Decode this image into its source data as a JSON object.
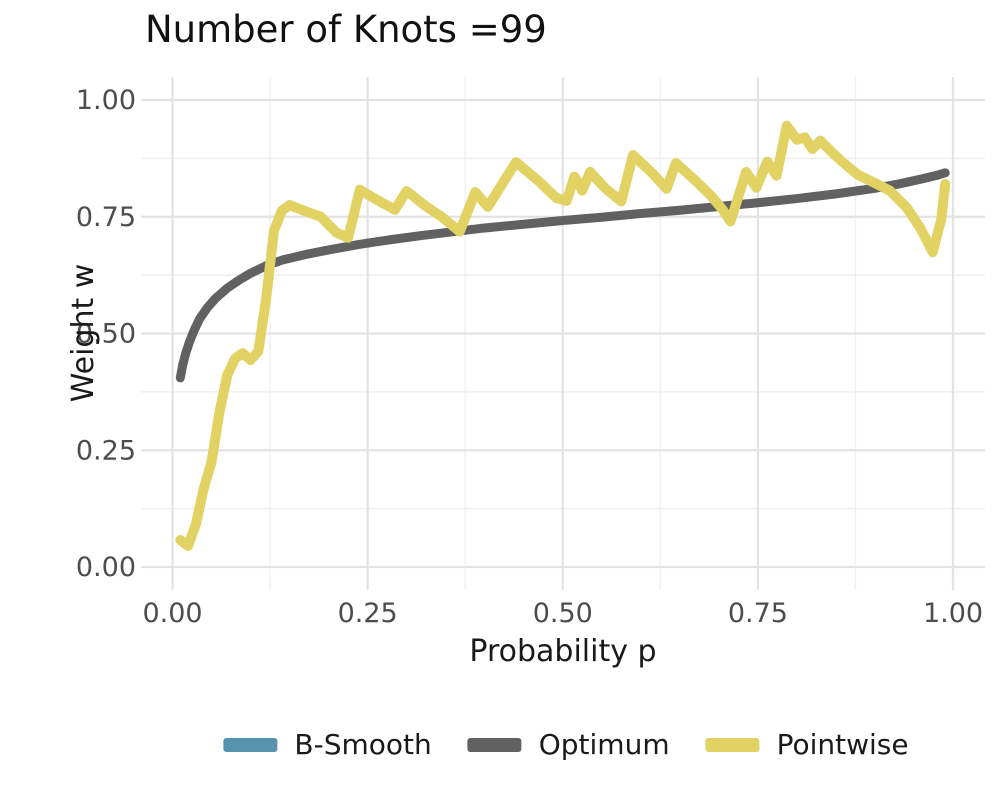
{
  "chart_data": {
    "type": "line",
    "title": "Number of Knots =99",
    "xlabel": "Probability p",
    "ylabel": "Weight w",
    "xlim": [
      0,
      1
    ],
    "ylim": [
      0,
      1
    ],
    "x_ticks": [
      0,
      0.25,
      0.5,
      0.75,
      1
    ],
    "x_tick_labels": [
      "0.00",
      "0.25",
      "0.50",
      "0.75",
      "1.00"
    ],
    "y_ticks": [
      0,
      0.25,
      0.5,
      0.75,
      1
    ],
    "y_tick_labels": [
      "0.00",
      "0.25",
      "0.50",
      "0.75",
      "1.00"
    ],
    "grid": {
      "major_color": "#e3e3e3",
      "minor_color": "#f0f0f0",
      "minor_step": 0.125
    },
    "legend_position": "bottom-center",
    "series": [
      {
        "name": "B-Smooth",
        "color": "#5793ad",
        "linewidth": 9,
        "visible_in_panel": false,
        "points": []
      },
      {
        "name": "Optimum",
        "color": "#616161",
        "linewidth": 9,
        "visible_in_panel": true,
        "points": [
          [
            0.01,
            0.405
          ],
          [
            0.013,
            0.432
          ],
          [
            0.017,
            0.458
          ],
          [
            0.022,
            0.483
          ],
          [
            0.028,
            0.508
          ],
          [
            0.035,
            0.532
          ],
          [
            0.045,
            0.556
          ],
          [
            0.055,
            0.575
          ],
          [
            0.07,
            0.597
          ],
          [
            0.085,
            0.614
          ],
          [
            0.1,
            0.629
          ],
          [
            0.12,
            0.645
          ],
          [
            0.14,
            0.657
          ],
          [
            0.17,
            0.669
          ],
          [
            0.2,
            0.679
          ],
          [
            0.24,
            0.691
          ],
          [
            0.28,
            0.701
          ],
          [
            0.32,
            0.71
          ],
          [
            0.36,
            0.718
          ],
          [
            0.4,
            0.726
          ],
          [
            0.45,
            0.734
          ],
          [
            0.5,
            0.742
          ],
          [
            0.55,
            0.749
          ],
          [
            0.6,
            0.757
          ],
          [
            0.65,
            0.764
          ],
          [
            0.7,
            0.772
          ],
          [
            0.75,
            0.78
          ],
          [
            0.8,
            0.789
          ],
          [
            0.85,
            0.799
          ],
          [
            0.9,
            0.811
          ],
          [
            0.93,
            0.82
          ],
          [
            0.96,
            0.831
          ],
          [
            0.98,
            0.839
          ],
          [
            0.99,
            0.844
          ]
        ]
      },
      {
        "name": "Pointwise",
        "color": "#e2d263",
        "linewidth": 10,
        "visible_in_panel": true,
        "points": [
          [
            0.01,
            0.058
          ],
          [
            0.02,
            0.045
          ],
          [
            0.03,
            0.092
          ],
          [
            0.04,
            0.168
          ],
          [
            0.05,
            0.225
          ],
          [
            0.06,
            0.33
          ],
          [
            0.07,
            0.41
          ],
          [
            0.08,
            0.446
          ],
          [
            0.09,
            0.458
          ],
          [
            0.1,
            0.443
          ],
          [
            0.11,
            0.462
          ],
          [
            0.12,
            0.575
          ],
          [
            0.13,
            0.72
          ],
          [
            0.14,
            0.763
          ],
          [
            0.15,
            0.775
          ],
          [
            0.17,
            0.762
          ],
          [
            0.19,
            0.75
          ],
          [
            0.21,
            0.716
          ],
          [
            0.225,
            0.705
          ],
          [
            0.24,
            0.808
          ],
          [
            0.26,
            0.788
          ],
          [
            0.285,
            0.765
          ],
          [
            0.3,
            0.805
          ],
          [
            0.325,
            0.772
          ],
          [
            0.345,
            0.75
          ],
          [
            0.368,
            0.718
          ],
          [
            0.388,
            0.803
          ],
          [
            0.404,
            0.771
          ],
          [
            0.44,
            0.867
          ],
          [
            0.47,
            0.825
          ],
          [
            0.492,
            0.79
          ],
          [
            0.505,
            0.784
          ],
          [
            0.515,
            0.836
          ],
          [
            0.525,
            0.806
          ],
          [
            0.535,
            0.846
          ],
          [
            0.555,
            0.81
          ],
          [
            0.575,
            0.783
          ],
          [
            0.59,
            0.882
          ],
          [
            0.615,
            0.843
          ],
          [
            0.633,
            0.81
          ],
          [
            0.645,
            0.865
          ],
          [
            0.667,
            0.832
          ],
          [
            0.69,
            0.795
          ],
          [
            0.705,
            0.765
          ],
          [
            0.715,
            0.74
          ],
          [
            0.735,
            0.846
          ],
          [
            0.748,
            0.812
          ],
          [
            0.762,
            0.868
          ],
          [
            0.774,
            0.838
          ],
          [
            0.787,
            0.945
          ],
          [
            0.8,
            0.915
          ],
          [
            0.81,
            0.92
          ],
          [
            0.82,
            0.895
          ],
          [
            0.83,
            0.913
          ],
          [
            0.845,
            0.888
          ],
          [
            0.862,
            0.862
          ],
          [
            0.878,
            0.84
          ],
          [
            0.9,
            0.822
          ],
          [
            0.919,
            0.806
          ],
          [
            0.941,
            0.769
          ],
          [
            0.958,
            0.726
          ],
          [
            0.968,
            0.694
          ],
          [
            0.974,
            0.674
          ],
          [
            0.985,
            0.745
          ],
          [
            0.99,
            0.82
          ]
        ]
      }
    ]
  }
}
